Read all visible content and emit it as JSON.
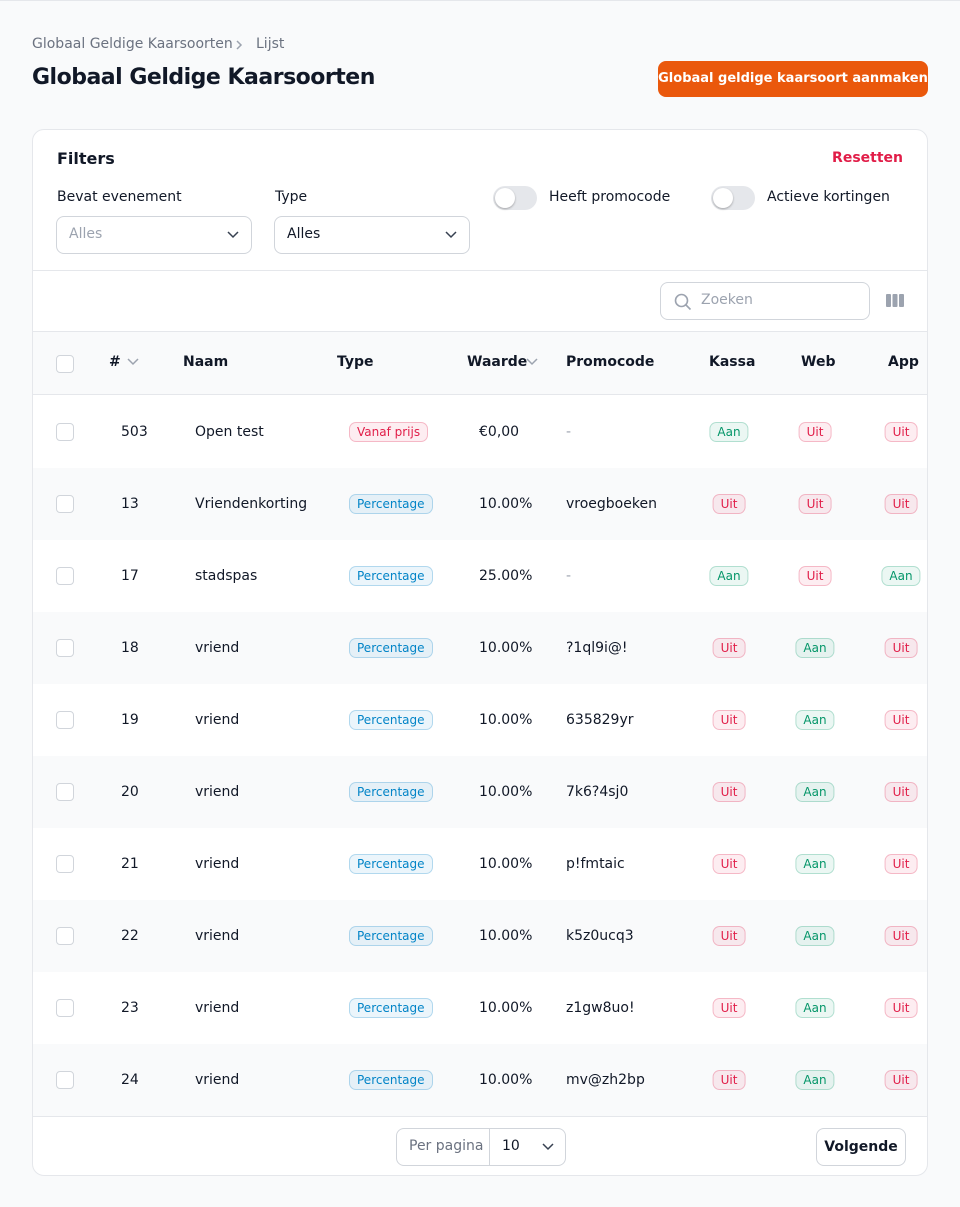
{
  "breadcrumbs": [
    "Globaal Geldige Kaarsoorten",
    "Lijst"
  ],
  "title": "Globaal Geldige Kaarsoorten",
  "create_button": "Globaal geldige kaarsoort aanmaken",
  "filters": {
    "title": "Filters",
    "reset": "Resetten",
    "selects": [
      {
        "label": "Bevat evenement",
        "value": "Alles"
      },
      {
        "label": "Type",
        "value": "Alles"
      }
    ],
    "toggles": [
      "Heeft promocode",
      "Actieve kortingen"
    ]
  },
  "search_placeholder": "Zoeken",
  "table": {
    "columns": [
      "#",
      "Naam",
      "Type",
      "Waarde",
      "Promocode",
      "Kassa",
      "Web",
      "App"
    ],
    "rows": [
      [
        503,
        "Open test",
        "Vanaf prijs",
        "€0,00",
        "-",
        "Aan",
        "Uit",
        "Uit"
      ],
      [
        13,
        "Vriendenkorting",
        "Percentage",
        "10.00%",
        "vroegboeken",
        "Uit",
        "Uit",
        "Uit"
      ],
      [
        17,
        "stadspas",
        "Percentage",
        "25.00%",
        "-",
        "Aan",
        "Uit",
        "Aan"
      ],
      [
        18,
        "vriend",
        "Percentage",
        "10.00%",
        "?1ql9i@!",
        "Uit",
        "Aan",
        "Uit"
      ],
      [
        19,
        "vriend",
        "Percentage",
        "10.00%",
        "635829yr",
        "Uit",
        "Aan",
        "Uit"
      ],
      [
        20,
        "vriend",
        "Percentage",
        "10.00%",
        "7k6?4sj0",
        "Uit",
        "Aan",
        "Uit"
      ],
      [
        21,
        "vriend",
        "Percentage",
        "10.00%",
        "p!fmtaic",
        "Uit",
        "Aan",
        "Uit"
      ],
      [
        22,
        "vriend",
        "Percentage",
        "10.00%",
        "k5z0ucq3",
        "Uit",
        "Aan",
        "Uit"
      ],
      [
        23,
        "vriend",
        "Percentage",
        "10.00%",
        "z1gw8uo!",
        "Uit",
        "Aan",
        "Uit"
      ],
      [
        24,
        "vriend",
        "Percentage",
        "10.00%",
        "mv@zh2bp",
        "Uit",
        "Aan",
        "Uit"
      ]
    ]
  },
  "badge_colors": {
    "Vanaf prijs": "#e11d48",
    "Percentage": "#0284c7",
    "Aan": "#059669",
    "Uit": "#e11d48"
  },
  "pagination": {
    "per_page_label": "Per pagina",
    "per_page": "10",
    "next": "Volgende"
  }
}
